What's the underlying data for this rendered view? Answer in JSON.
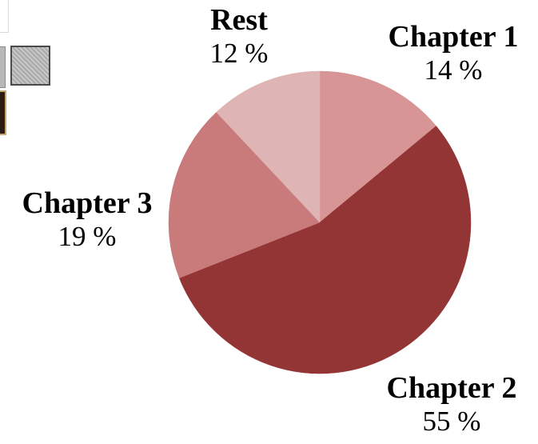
{
  "chart_data": {
    "type": "pie",
    "title": "",
    "slices": [
      {
        "label": "Chapter 1",
        "value": 14,
        "value_label": "14 %",
        "color": "#d89595"
      },
      {
        "label": "Chapter 2",
        "value": 55,
        "value_label": "55 %",
        "color": "#943535"
      },
      {
        "label": "Chapter 3",
        "value": 19,
        "value_label": "19 %",
        "color": "#c97b7b"
      },
      {
        "label": "Rest",
        "value": 12,
        "value_label": "12 %",
        "color": "#dfb4b4"
      }
    ],
    "start": "12 o'clock",
    "direction": "clockwise",
    "legend": "none (labels placed beside slices)"
  },
  "thumbnails": {
    "icons": [
      "image-thumbnail",
      "image-thumbnail",
      "image-thumbnail"
    ]
  }
}
